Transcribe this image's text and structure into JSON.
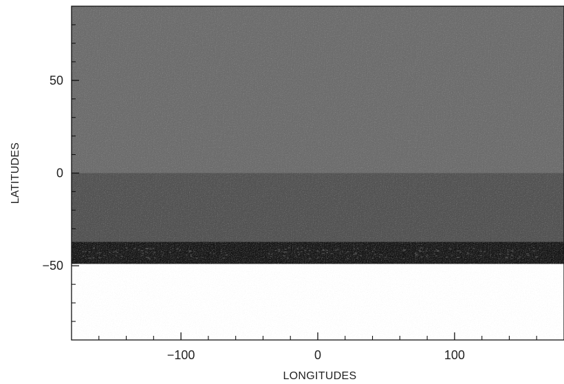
{
  "chart_data": {
    "type": "heatmap",
    "title": "",
    "xlabel": "LONGITUDES",
    "ylabel": "LATITUDES",
    "xlim": [
      -180,
      180
    ],
    "ylim": [
      -90,
      90
    ],
    "x_major_ticks": [
      -100,
      0,
      100
    ],
    "x_tick_labels": [
      "−100",
      "0",
      "100"
    ],
    "x_minor_ticks": [
      -160,
      -140,
      -120,
      -80,
      -60,
      -40,
      -20,
      20,
      40,
      60,
      80,
      120,
      140,
      160
    ],
    "y_major_ticks": [
      -50,
      0,
      50
    ],
    "y_tick_labels": [
      "−50",
      "0",
      "50"
    ],
    "y_minor_ticks": [
      -80,
      -70,
      -60,
      -40,
      -30,
      -20,
      -10,
      10,
      20,
      30,
      40,
      60,
      70,
      80
    ],
    "grid": false,
    "legend": "none",
    "bands": [
      {
        "lat_min": 0,
        "lat_max": 90,
        "level": "medium-dark gray",
        "color": "#6d6d6d"
      },
      {
        "lat_min": -37,
        "lat_max": 0,
        "level": "dark gray",
        "color": "#535353"
      },
      {
        "lat_min": -49,
        "lat_max": -37,
        "level": "near black",
        "color": "#141414"
      },
      {
        "lat_min": -90,
        "lat_max": -49,
        "level": "no data",
        "color": "#ffffff"
      }
    ]
  }
}
